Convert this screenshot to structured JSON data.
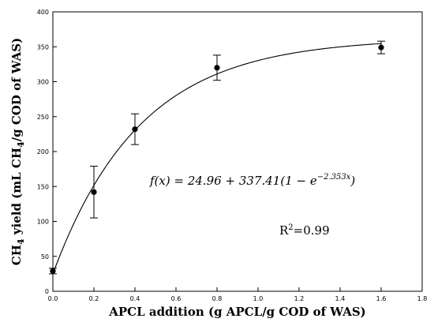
{
  "chart_data": {
    "type": "scatter",
    "xlabel": "APCL addition (g APCL/g COD of WAS)",
    "ylabel": {
      "prefix": "CH",
      "sub1": "4",
      "mid": " yield (mL CH",
      "sub2": "4",
      "suffix": "/g COD of WAS)"
    },
    "xlim": [
      0.0,
      1.8
    ],
    "ylim": [
      0,
      400
    ],
    "xticks": [
      "0.0",
      "0.2",
      "0.4",
      "0.6",
      "0.8",
      "1.0",
      "1.2",
      "1.4",
      "1.6",
      "1.8"
    ],
    "yticks": [
      "0",
      "50",
      "100",
      "150",
      "200",
      "250",
      "300",
      "350",
      "400"
    ],
    "grid": false,
    "series": [
      {
        "points": [
          {
            "x": 0.0,
            "y": 29,
            "err": 4
          },
          {
            "x": 0.2,
            "y": 142,
            "err": 37
          },
          {
            "x": 0.4,
            "y": 232,
            "err": 22
          },
          {
            "x": 0.8,
            "y": 320,
            "err": 18
          },
          {
            "x": 1.6,
            "y": 349,
            "err": 9
          }
        ]
      }
    ],
    "fit": {
      "a": 24.96,
      "b": 337.41,
      "k": 2.353,
      "equation_lhs": "f(x) = 24.96 + 337.41(1 − e",
      "equation_exp": "−2.353x",
      "equation_rhs": ")"
    },
    "annotation": {
      "r2_label": "R",
      "r2_sup": "2",
      "r2_value": "=0.99"
    }
  }
}
